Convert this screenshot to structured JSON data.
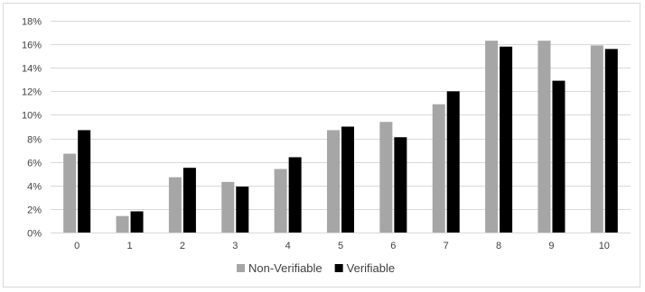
{
  "chart_data": {
    "type": "bar",
    "categories": [
      "0",
      "1",
      "2",
      "3",
      "4",
      "5",
      "6",
      "7",
      "8",
      "9",
      "10"
    ],
    "series": [
      {
        "name": "Non-Verifiable",
        "color": "#a6a6a6",
        "values": [
          6.7,
          1.4,
          4.7,
          4.3,
          5.4,
          8.7,
          9.4,
          10.9,
          16.3,
          16.3,
          15.9
        ]
      },
      {
        "name": "Verifiable",
        "color": "#000000",
        "values": [
          8.7,
          1.8,
          5.5,
          3.9,
          6.4,
          9.0,
          8.1,
          12.0,
          15.8,
          12.9,
          15.6
        ]
      }
    ],
    "ylim": [
      0,
      18
    ],
    "y_ticks": [
      0,
      2,
      4,
      6,
      8,
      10,
      12,
      14,
      16,
      18
    ],
    "y_tick_format": "percent",
    "grid": true,
    "gridline_color": "#d9d9d9",
    "legend_position": "bottom"
  }
}
